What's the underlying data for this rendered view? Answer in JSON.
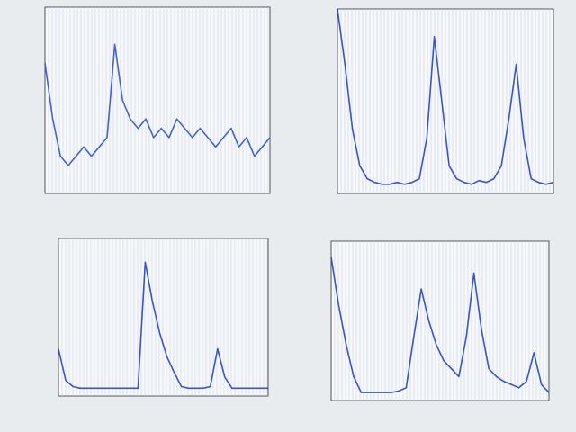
{
  "chart_data": [
    {
      "type": "line",
      "color": "#2f54c4",
      "xlim": [
        0,
        29
      ],
      "ylim": [
        0,
        100
      ],
      "x": [
        0,
        1,
        2,
        3,
        4,
        5,
        6,
        7,
        8,
        9,
        10,
        11,
        12,
        13,
        14,
        15,
        16,
        17,
        18,
        19,
        20,
        21,
        22,
        23,
        24,
        25,
        26,
        27,
        28,
        29
      ],
      "values": [
        70,
        40,
        20,
        15,
        20,
        25,
        20,
        25,
        30,
        80,
        50,
        40,
        35,
        40,
        30,
        35,
        30,
        40,
        35,
        30,
        35,
        30,
        25,
        30,
        35,
        25,
        30,
        20,
        25,
        30
      ]
    },
    {
      "type": "line",
      "color": "#2445b8",
      "xlim": [
        0,
        29
      ],
      "ylim": [
        0,
        100
      ],
      "x": [
        0,
        1,
        2,
        3,
        4,
        5,
        6,
        7,
        8,
        9,
        10,
        11,
        12,
        13,
        14,
        15,
        16,
        17,
        18,
        19,
        20,
        21,
        22,
        23,
        24,
        25,
        26,
        27,
        28,
        29
      ],
      "values": [
        100,
        70,
        35,
        15,
        8,
        6,
        5,
        5,
        6,
        5,
        6,
        8,
        30,
        85,
        50,
        15,
        8,
        6,
        5,
        7,
        6,
        8,
        15,
        40,
        70,
        30,
        8,
        6,
        5,
        6
      ]
    },
    {
      "type": "line",
      "color": "#2445b8",
      "xlim": [
        0,
        29
      ],
      "ylim": [
        0,
        100
      ],
      "x": [
        0,
        1,
        2,
        3,
        4,
        5,
        6,
        7,
        8,
        9,
        10,
        11,
        12,
        13,
        14,
        15,
        16,
        17,
        18,
        19,
        20,
        21,
        22,
        23,
        24,
        25,
        26,
        27,
        28,
        29
      ],
      "values": [
        30,
        10,
        6,
        5,
        5,
        5,
        5,
        5,
        5,
        5,
        5,
        5,
        85,
        60,
        40,
        25,
        15,
        6,
        5,
        5,
        5,
        6,
        30,
        12,
        5,
        5,
        5,
        5,
        5,
        5
      ]
    },
    {
      "type": "line",
      "color": "#2445b8",
      "xlim": [
        0,
        29
      ],
      "ylim": [
        0,
        100
      ],
      "x": [
        0,
        1,
        2,
        3,
        4,
        5,
        6,
        7,
        8,
        9,
        10,
        11,
        12,
        13,
        14,
        15,
        16,
        17,
        18,
        19,
        20,
        21,
        22,
        23,
        24,
        25,
        26,
        27,
        28,
        29
      ],
      "values": [
        90,
        60,
        35,
        15,
        5,
        5,
        5,
        5,
        5,
        6,
        8,
        40,
        70,
        50,
        35,
        25,
        20,
        15,
        40,
        80,
        45,
        20,
        15,
        12,
        10,
        8,
        12,
        30,
        10,
        5
      ]
    }
  ]
}
